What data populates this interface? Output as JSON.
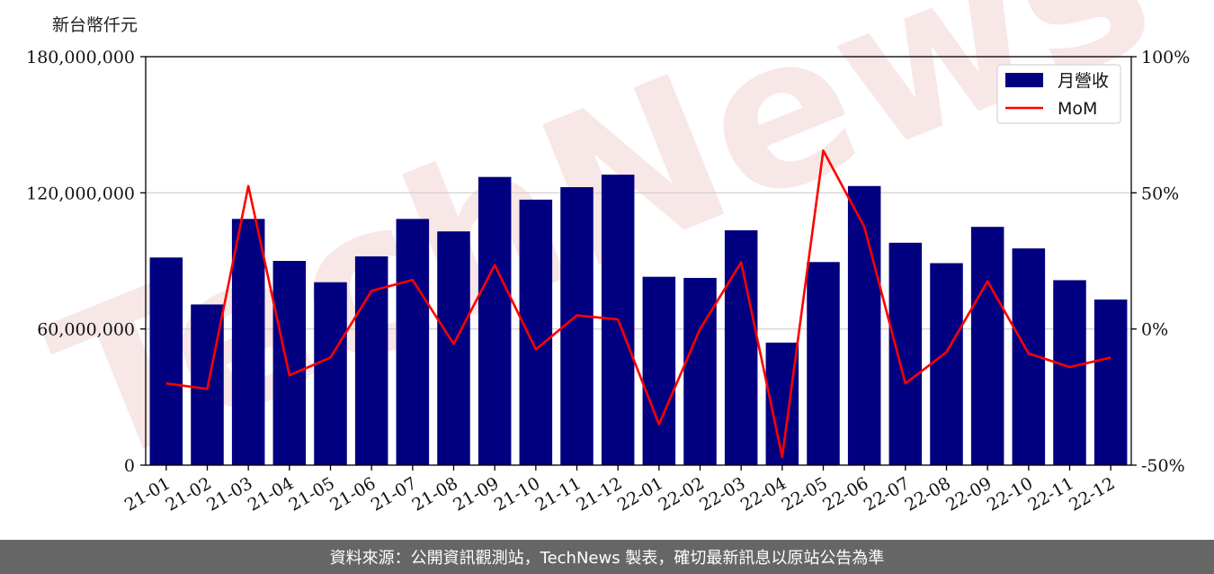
{
  "chart_data": {
    "type": "bar",
    "unit_label": "新台幣仟元",
    "categories": [
      "21-01",
      "21-02",
      "21-03",
      "21-04",
      "21-05",
      "21-06",
      "21-07",
      "21-08",
      "21-09",
      "21-10",
      "21-11",
      "21-12",
      "22-01",
      "22-02",
      "22-03",
      "22-04",
      "22-05",
      "22-06",
      "22-07",
      "22-08",
      "22-09",
      "22-10",
      "22-11",
      "22-12"
    ],
    "series": [
      {
        "name": "月營收",
        "kind": "bar",
        "axis": "left",
        "color": "#000080",
        "values": [
          91500000,
          70800000,
          108500000,
          90000000,
          80600000,
          92000000,
          108500000,
          103000000,
          127000000,
          117000000,
          122500000,
          128000000,
          83000000,
          82500000,
          103500000,
          54000000,
          89500000,
          123000000,
          98000000,
          89000000,
          105000000,
          95500000,
          81500000,
          73000000
        ]
      },
      {
        "name": "MoM",
        "kind": "line",
        "axis": "right",
        "color": "#ff0000",
        "values": [
          -20,
          -22,
          52.5,
          -17,
          -10.5,
          14,
          18,
          -5.5,
          23.5,
          -7.5,
          5,
          3.5,
          -35,
          0,
          24.5,
          -47,
          65.5,
          37.5,
          -20,
          -8.5,
          17.5,
          -9,
          -14,
          -10.5
        ]
      }
    ],
    "y_left": {
      "min": 0,
      "max": 180000000,
      "ticks": [
        "0",
        "60,000,000",
        "120,000,000",
        "180,000,000"
      ]
    },
    "y_right": {
      "min": -50,
      "max": 100,
      "ticks": [
        "-50%",
        "0%",
        "50%",
        "100%"
      ]
    },
    "grid": "horizontal",
    "legend": "top-right",
    "watermark": "TechNews"
  },
  "footer": {
    "source_text": "資料來源：公開資訊觀測站，TechNews 製表，確切最新訊息以原站公告為準"
  }
}
